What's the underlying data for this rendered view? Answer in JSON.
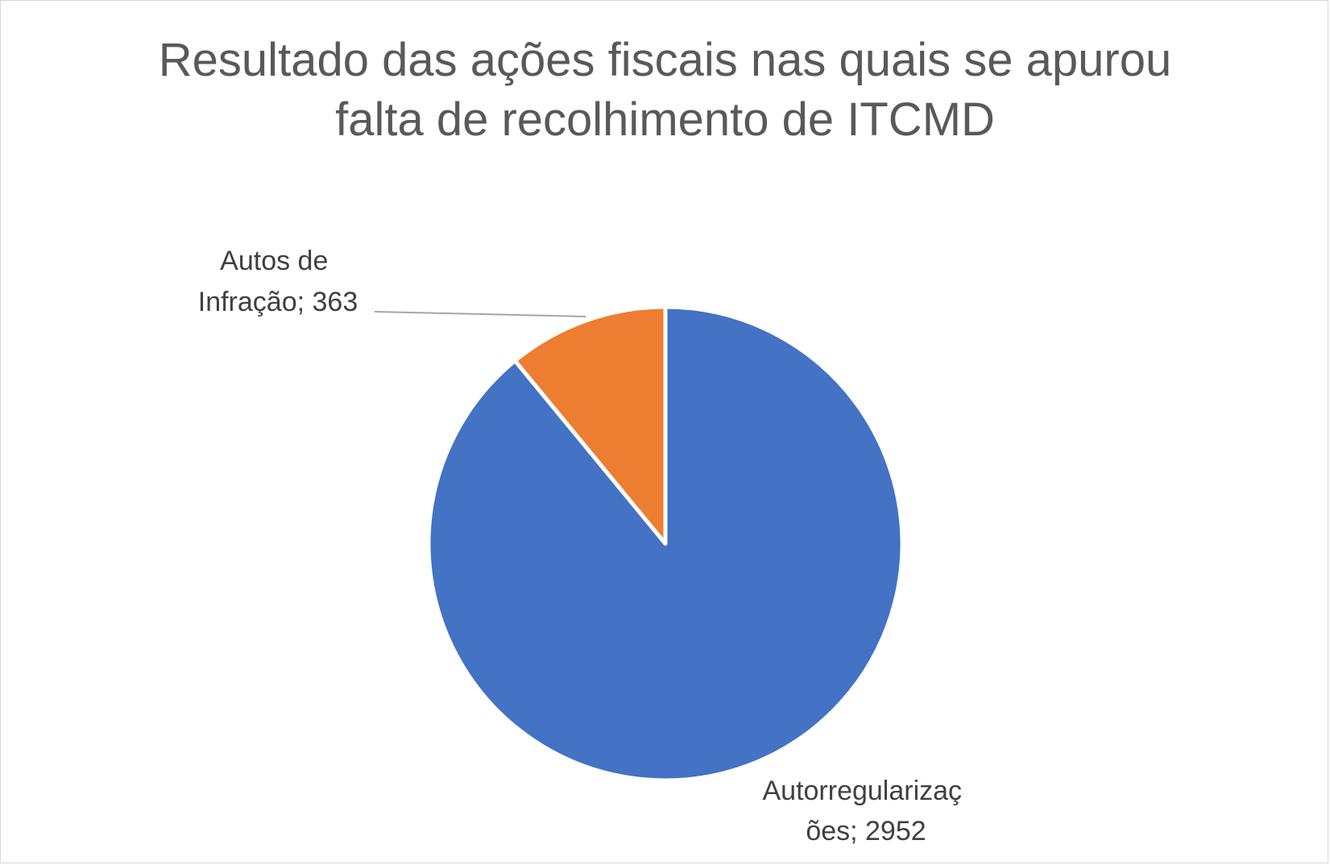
{
  "chart_data": {
    "type": "pie",
    "title": "Resultado das ações fiscais nas quais se apurou falta de recolhimento de ITCMD",
    "title_lines": [
      "Resultado das ações fiscais nas quais se apurou",
      "falta de recolhimento de ITCMD"
    ],
    "slices": [
      {
        "category": "Autorregularizações",
        "value": 2952,
        "color": "#4472C4",
        "label_lines": [
          "Autorregularizaç",
          "ões; 2952"
        ]
      },
      {
        "category": "Autos de Infração",
        "value": 363,
        "color": "#ED7D31",
        "label_lines": [
          "Autos de",
          "Infração; 363"
        ]
      }
    ],
    "legend": false
  }
}
